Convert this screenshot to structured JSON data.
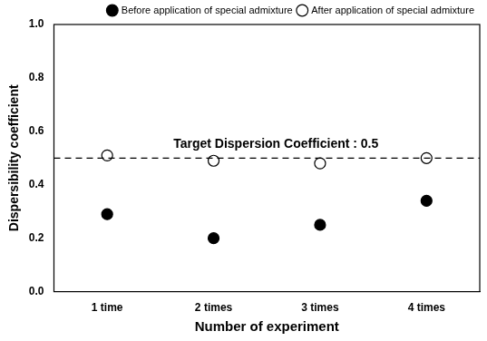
{
  "chart_data": {
    "type": "scatter",
    "categories": [
      "1 time",
      "2 times",
      "3 times",
      "4 times"
    ],
    "series": [
      {
        "name": "Before application of special admixture",
        "color": "#000000",
        "marker": "filled_circle",
        "values": [
          0.29,
          0.2,
          0.25,
          0.34
        ]
      },
      {
        "name": "After application of special admixture",
        "color": "#000000",
        "marker": "open_circle",
        "values": [
          0.51,
          0.49,
          0.48,
          0.5
        ]
      }
    ],
    "x_label": "Number of experiment",
    "y_label": "Dispersibility coefficient",
    "ylim": [
      0,
      1
    ],
    "yticks": [
      {
        "value": 0,
        "label": "0.0"
      },
      0.2,
      0.4,
      0.6,
      0.8,
      {
        "value": 1,
        "label": "1.0"
      }
    ],
    "annotations": [
      {
        "text": "Target Dispersion Coefficient : 0.5",
        "y": 0.5,
        "line_style": "dashed"
      }
    ],
    "legend": "upper right",
    "grid": false
  }
}
